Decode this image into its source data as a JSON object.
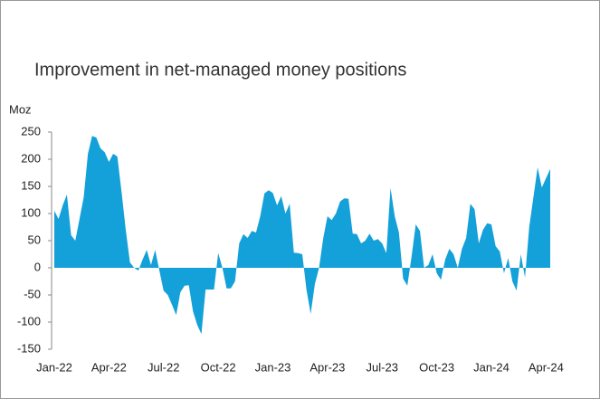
{
  "chart_data": {
    "type": "area",
    "title": "Improvement in net-managed money positions",
    "y_label": "Moz",
    "color": "#14a0d8",
    "categories": [
      "Jan-22",
      null,
      null,
      null,
      null,
      null,
      null,
      null,
      null,
      null,
      null,
      null,
      null,
      "Apr-22",
      null,
      null,
      null,
      null,
      null,
      null,
      null,
      null,
      null,
      null,
      null,
      null,
      "Jul-22",
      null,
      null,
      null,
      null,
      null,
      null,
      null,
      null,
      null,
      null,
      null,
      null,
      "Oct-22",
      null,
      null,
      null,
      null,
      null,
      null,
      null,
      null,
      null,
      null,
      null,
      null,
      "Jan-23",
      null,
      null,
      null,
      null,
      null,
      null,
      null,
      null,
      null,
      null,
      null,
      null,
      "Apr-23",
      null,
      null,
      null,
      null,
      null,
      null,
      null,
      null,
      null,
      null,
      null,
      null,
      "Jul-23",
      null,
      null,
      null,
      null,
      null,
      null,
      null,
      null,
      null,
      null,
      null,
      null,
      "Oct-23",
      null,
      null,
      null,
      null,
      null,
      null,
      null,
      null,
      null,
      null,
      null,
      null,
      "Jan-24",
      null,
      null,
      null,
      null,
      null,
      null,
      null,
      null,
      null,
      null,
      null,
      null,
      "Apr-24",
      null
    ],
    "values": [
      105,
      90,
      115,
      135,
      60,
      50,
      90,
      130,
      210,
      243,
      240,
      220,
      213,
      195,
      210,
      205,
      140,
      70,
      10,
      0,
      -5,
      15,
      33,
      5,
      33,
      -5,
      -42,
      -50,
      -68,
      -87,
      -45,
      -33,
      -32,
      -80,
      -105,
      -122,
      -40,
      -40,
      -40,
      27,
      0,
      -38,
      -38,
      -25,
      45,
      62,
      55,
      68,
      65,
      95,
      137,
      143,
      138,
      115,
      132,
      100,
      118,
      28,
      27,
      25,
      -40,
      -85,
      -30,
      0,
      55,
      95,
      88,
      100,
      122,
      128,
      127,
      63,
      62,
      45,
      50,
      63,
      50,
      53,
      45,
      27,
      147,
      95,
      65,
      -20,
      -33,
      20,
      80,
      68,
      0,
      5,
      25,
      -10,
      -22,
      15,
      35,
      25,
      0,
      35,
      55,
      118,
      108,
      45,
      70,
      82,
      80,
      40,
      30,
      -10,
      18,
      -25,
      -42,
      25,
      -18,
      75,
      130,
      185,
      148,
      165,
      182
    ],
    "ylim": [
      -150,
      250
    ],
    "yticks": [
      -150,
      -100,
      -50,
      0,
      50,
      100,
      150,
      200,
      250
    ]
  }
}
